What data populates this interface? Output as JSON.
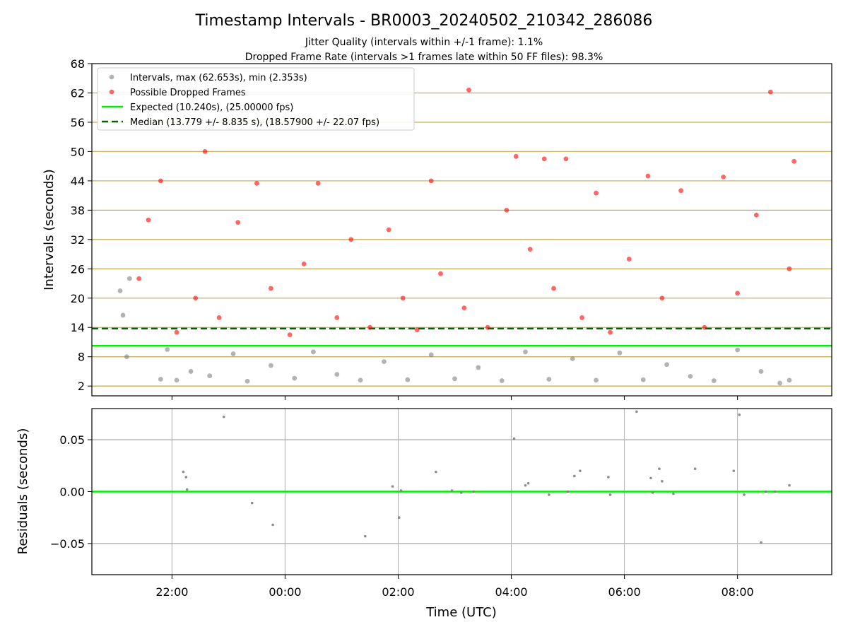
{
  "figure": {
    "title": "Timestamp Intervals - BR0003_20240502_210342_286086",
    "subtitle_1": "Jitter Quality (intervals within +/-1 frame): 1.1%",
    "subtitle_2": "Dropped Frame Rate (intervals >1 frames late within 50 FF files): 98.3%"
  },
  "colors": {
    "intervals": "#808080",
    "dropped": "#ff0000",
    "expected": "#00ee00",
    "median": "#006400",
    "hgrid": "#c8b060",
    "vgrid": "#b0b0b0"
  },
  "chart_data": [
    {
      "type": "scatter",
      "panel": "intervals",
      "ylabel": "Intervals (seconds)",
      "ylim": [
        0,
        68
      ],
      "yticks": [
        "2",
        "8",
        "14",
        "20",
        "26",
        "32",
        "38",
        "44",
        "50",
        "56",
        "62",
        "68"
      ],
      "xlim": [
        "2024-05-02 20:35",
        "2024-05-03 09:40"
      ],
      "xticks": [
        "22:00",
        "00:00",
        "02:00",
        "04:00",
        "06:00",
        "08:00"
      ],
      "grid": "horizontal",
      "legend_position": "upper-left",
      "legend": [
        "Intervals, max (62.653s), min (2.353s)",
        "Possible Dropped Frames",
        "Expected (10.240s), (25.00000 fps)",
        "Median (13.779 +/- 8.835 s), (18.57900 +/- 22.07 fps)"
      ],
      "reference_lines": [
        {
          "name": "Expected",
          "y": 10.24,
          "style": "solid"
        },
        {
          "name": "Median",
          "y": 13.779,
          "style": "dashed"
        }
      ],
      "series": [
        {
          "name": "Intervals, max (62.653s), min (2.353s)",
          "marker": "circle",
          "x": [
            "21:05",
            "21:08",
            "21:12",
            "21:15",
            "21:48",
            "21:55",
            "22:05",
            "22:20",
            "22:40",
            "23:05",
            "23:20",
            "23:45",
            "00:10",
            "00:30",
            "00:55",
            "01:20",
            "01:45",
            "02:10",
            "02:35",
            "03:00",
            "03:25",
            "03:50",
            "04:15",
            "04:40",
            "05:05",
            "05:30",
            "05:55",
            "06:20",
            "06:45",
            "07:10",
            "07:35",
            "08:00",
            "08:25",
            "08:45",
            "08:55"
          ],
          "y": [
            21.5,
            16.5,
            8.0,
            24.0,
            3.4,
            9.5,
            3.2,
            5.0,
            4.1,
            8.6,
            3.0,
            6.2,
            3.6,
            9.0,
            4.4,
            3.2,
            7.0,
            3.3,
            8.4,
            3.5,
            5.8,
            3.1,
            9.0,
            3.4,
            7.6,
            3.2,
            8.8,
            3.3,
            6.4,
            4.0,
            3.1,
            9.4,
            5.0,
            2.6,
            3.2
          ]
        },
        {
          "name": "Possible Dropped Frames",
          "marker": "circle",
          "x": [
            "21:25",
            "21:35",
            "21:48",
            "22:05",
            "22:25",
            "22:35",
            "22:50",
            "23:10",
            "23:30",
            "23:45",
            "00:05",
            "00:20",
            "00:35",
            "00:55",
            "01:10",
            "01:30",
            "01:50",
            "02:05",
            "02:20",
            "02:35",
            "02:45",
            "03:10",
            "03:15",
            "03:35",
            "03:55",
            "04:05",
            "04:20",
            "04:35",
            "04:45",
            "04:58",
            "05:15",
            "05:30",
            "05:45",
            "06:05",
            "06:25",
            "06:40",
            "07:00",
            "07:25",
            "07:45",
            "08:00",
            "08:20",
            "08:35",
            "08:55",
            "09:00"
          ],
          "y": [
            24.0,
            36.0,
            44.0,
            13.0,
            20.0,
            50.0,
            16.0,
            35.5,
            43.5,
            22.0,
            12.5,
            27.0,
            43.5,
            16.0,
            32.0,
            14.0,
            34.0,
            20.0,
            13.5,
            44.0,
            25.0,
            18.0,
            62.6,
            14.0,
            38.0,
            49.0,
            30.0,
            48.5,
            22.0,
            48.5,
            16.0,
            41.5,
            13.0,
            28.0,
            45.0,
            20.0,
            42.0,
            14.0,
            44.8,
            21.0,
            37.0,
            62.2,
            26.0,
            48.0
          ]
        }
      ]
    },
    {
      "type": "scatter",
      "panel": "residuals",
      "xlabel": "Time (UTC)",
      "ylabel": "Residuals (seconds)",
      "ylim": [
        -0.08,
        0.08
      ],
      "yticks": [
        "−0.05",
        "0.00",
        "0.05"
      ],
      "xlim": [
        "2024-05-02 20:35",
        "2024-05-03 09:40"
      ],
      "xticks": [
        "22:00",
        "00:00",
        "02:00",
        "04:00",
        "06:00",
        "08:00"
      ],
      "grid": "both",
      "reference_lines": [
        {
          "name": "Expected",
          "y": 0.0,
          "style": "solid"
        }
      ],
      "series": [
        {
          "name": "",
          "marker": "circle",
          "x": [
            "22:12",
            "22:15",
            "22:16",
            "22:55",
            "23:25",
            "23:47",
            "01:25",
            "01:54",
            "02:01",
            "02:03",
            "02:40",
            "02:57",
            "03:07",
            "03:20",
            "04:03",
            "04:15",
            "04:18",
            "04:40",
            "05:00",
            "05:07",
            "05:13",
            "05:43",
            "05:45",
            "06:13",
            "06:28",
            "06:30",
            "06:37",
            "06:40",
            "06:52",
            "07:15",
            "07:56",
            "08:02",
            "08:07",
            "08:25",
            "08:30",
            "08:40",
            "08:55"
          ],
          "y": [
            0.019,
            0.014,
            0.002,
            0.072,
            -0.011,
            -0.032,
            -0.043,
            0.005,
            -0.025,
            0.001,
            0.019,
            0.001,
            -0.001,
            0.0,
            0.051,
            0.006,
            0.008,
            -0.003,
            0.0,
            0.015,
            0.02,
            0.014,
            -0.003,
            0.077,
            0.013,
            -0.001,
            0.022,
            0.01,
            -0.002,
            0.022,
            0.02,
            0.074,
            -0.003,
            -0.049,
            0.0,
            0.0,
            0.006
          ]
        }
      ]
    }
  ]
}
